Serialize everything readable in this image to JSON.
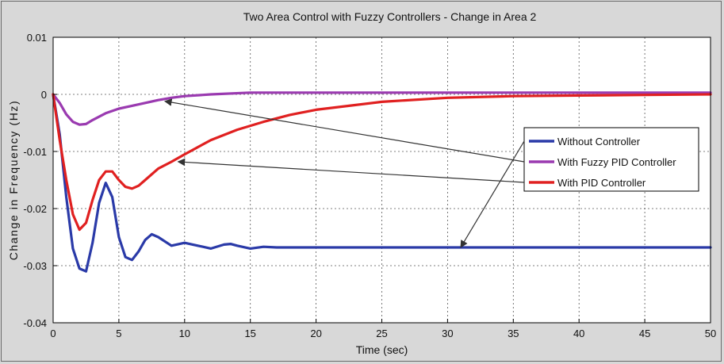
{
  "chart_data": {
    "type": "line",
    "title": "Two Area Control with Fuzzy Controllers - Change in Area 2",
    "xlabel": "Time (sec)",
    "ylabel": "Change in Frequency (Hz)",
    "xlim": [
      0,
      50
    ],
    "ylim": [
      -0.04,
      0.01
    ],
    "x_ticks": [
      "0",
      "5",
      "10",
      "15",
      "20",
      "25",
      "30",
      "35",
      "40",
      "45",
      "50"
    ],
    "y_ticks": [
      "0.01",
      "0",
      "-0.01",
      "-0.02",
      "-0.03",
      "-0.04"
    ],
    "grid": true,
    "legend_position": "right",
    "series": [
      {
        "name": "Without Controller",
        "color": "#2a3aa8",
        "x": [
          0,
          0.5,
          1.0,
          1.5,
          2.0,
          2.5,
          3.0,
          3.5,
          4.0,
          4.5,
          5.0,
          5.5,
          6.0,
          6.5,
          7.0,
          7.5,
          8.0,
          9.0,
          10.0,
          11.0,
          12.0,
          13.0,
          13.5,
          14.0,
          15.0,
          16.0,
          17.0,
          18.0,
          20.0,
          30.0,
          40.0,
          50.0
        ],
        "y": [
          0,
          -0.007,
          -0.018,
          -0.027,
          -0.0305,
          -0.031,
          -0.026,
          -0.019,
          -0.0155,
          -0.018,
          -0.025,
          -0.0285,
          -0.029,
          -0.0275,
          -0.0255,
          -0.0245,
          -0.025,
          -0.0265,
          -0.026,
          -0.0265,
          -0.027,
          -0.0263,
          -0.0262,
          -0.0265,
          -0.027,
          -0.0267,
          -0.0268,
          -0.0268,
          -0.0268,
          -0.0268,
          -0.0268,
          -0.0268
        ]
      },
      {
        "name": "With Fuzzy PID Controller",
        "color": "#9a3ab0",
        "x": [
          0,
          0.5,
          1.0,
          1.5,
          2.0,
          2.5,
          3.0,
          4.0,
          5.0,
          6.0,
          7.0,
          8.0,
          9.0,
          10.0,
          12.0,
          15.0,
          20.0,
          30.0,
          40.0,
          50.0
        ],
        "y": [
          0,
          -0.0015,
          -0.0035,
          -0.0048,
          -0.0053,
          -0.0052,
          -0.0045,
          -0.0033,
          -0.0025,
          -0.002,
          -0.0015,
          -0.001,
          -0.0006,
          -0.0003,
          0.0,
          0.0003,
          0.0003,
          0.0003,
          0.0003,
          0.0003
        ]
      },
      {
        "name": "With PID Controller",
        "color": "#e02020",
        "x": [
          0,
          0.5,
          1.0,
          1.5,
          2.0,
          2.5,
          3.0,
          3.5,
          4.0,
          4.5,
          5.0,
          5.5,
          6.0,
          6.5,
          7.0,
          8.0,
          9.0,
          10.0,
          12.0,
          14.0,
          16.0,
          18.0,
          20.0,
          25.0,
          30.0,
          35.0,
          40.0,
          45.0,
          50.0
        ],
        "y": [
          0,
          -0.008,
          -0.015,
          -0.021,
          -0.0237,
          -0.0225,
          -0.0185,
          -0.015,
          -0.0135,
          -0.0135,
          -0.015,
          -0.0162,
          -0.0165,
          -0.016,
          -0.015,
          -0.013,
          -0.0118,
          -0.0105,
          -0.008,
          -0.0062,
          -0.0048,
          -0.0036,
          -0.0027,
          -0.0013,
          -0.0006,
          -0.0003,
          -0.0002,
          -0.0001,
          0.0
        ]
      }
    ],
    "annotations": [
      {
        "from_label": "With Fuzzy PID Controller",
        "to": [
          8.5,
          -0.0012
        ]
      },
      {
        "from_label": "Without Controller",
        "to": [
          31,
          -0.0268
        ]
      },
      {
        "from_label": "With PID Controller",
        "to": [
          9.5,
          -0.0118
        ]
      }
    ]
  }
}
